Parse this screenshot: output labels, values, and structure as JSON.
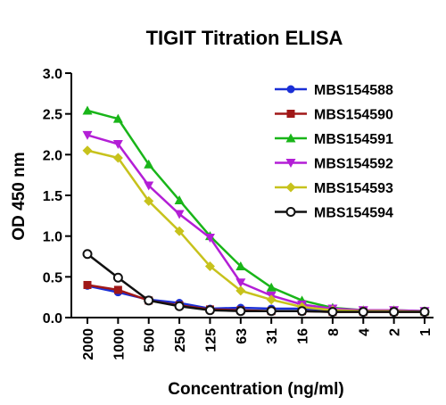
{
  "chart_data": {
    "type": "line",
    "title": "TIGIT Titration ELISA",
    "xlabel": "Concentration (ng/ml)",
    "ylabel": "OD 450 nm",
    "categories": [
      "2000",
      "1000",
      "500",
      "250",
      "125",
      "63",
      "31",
      "16",
      "8",
      "4",
      "2",
      "1"
    ],
    "ylim": [
      0,
      3.0
    ],
    "yticks": [
      "0.0",
      "0.5",
      "1.0",
      "1.5",
      "2.0",
      "2.5",
      "3.0"
    ],
    "grid": false,
    "legend_position": "top-right",
    "series": [
      {
        "name": "MBS154588",
        "color": "#1a2fd6",
        "marker": "circle",
        "values": [
          0.39,
          0.31,
          0.22,
          0.18,
          0.11,
          0.12,
          0.11,
          0.11,
          0.09,
          0.08,
          0.08,
          0.07
        ]
      },
      {
        "name": "MBS154590",
        "color": "#a01818",
        "marker": "square",
        "values": [
          0.4,
          0.34,
          0.21,
          0.15,
          0.1,
          0.09,
          0.08,
          0.08,
          0.07,
          0.07,
          0.07,
          0.07
        ]
      },
      {
        "name": "MBS154591",
        "color": "#19b519",
        "marker": "triangle-up",
        "values": [
          2.54,
          2.44,
          1.88,
          1.44,
          1.0,
          0.63,
          0.37,
          0.21,
          0.12,
          0.09,
          0.09,
          0.08
        ]
      },
      {
        "name": "MBS154592",
        "color": "#b31fd6",
        "marker": "triangle-down",
        "values": [
          2.24,
          2.13,
          1.62,
          1.27,
          0.98,
          0.43,
          0.27,
          0.16,
          0.11,
          0.09,
          0.09,
          0.08
        ]
      },
      {
        "name": "MBS154593",
        "color": "#c7c21c",
        "marker": "diamond",
        "values": [
          2.05,
          1.96,
          1.43,
          1.06,
          0.63,
          0.33,
          0.22,
          0.13,
          0.09,
          0.08,
          0.08,
          0.07
        ]
      },
      {
        "name": "MBS154594",
        "color": "#111111",
        "marker": "open-circle",
        "values": [
          0.78,
          0.49,
          0.21,
          0.14,
          0.09,
          0.08,
          0.08,
          0.08,
          0.07,
          0.07,
          0.07,
          0.07
        ]
      }
    ]
  }
}
